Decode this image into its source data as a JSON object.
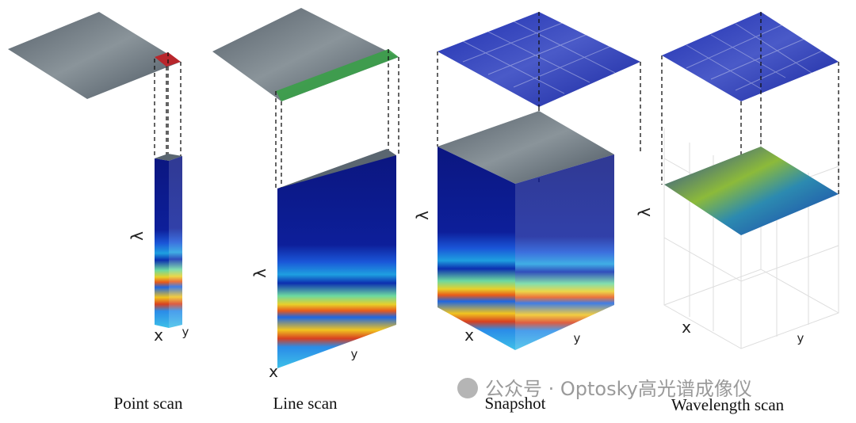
{
  "panels": [
    {
      "label": "Point scan",
      "axes": {
        "lambda": "λ",
        "x": "x",
        "y": "y"
      }
    },
    {
      "label": "Line scan",
      "axes": {
        "lambda": "λ",
        "x": "x",
        "y": "y"
      }
    },
    {
      "label": "Snapshot",
      "axes": {
        "lambda": "λ",
        "x": "x",
        "y": "y"
      }
    },
    {
      "label": "Wavelength scan",
      "axes": {
        "lambda": "λ",
        "x": "x",
        "y": "y"
      }
    }
  ],
  "watermark": "公众号 · Optosky高光谱成像仪"
}
